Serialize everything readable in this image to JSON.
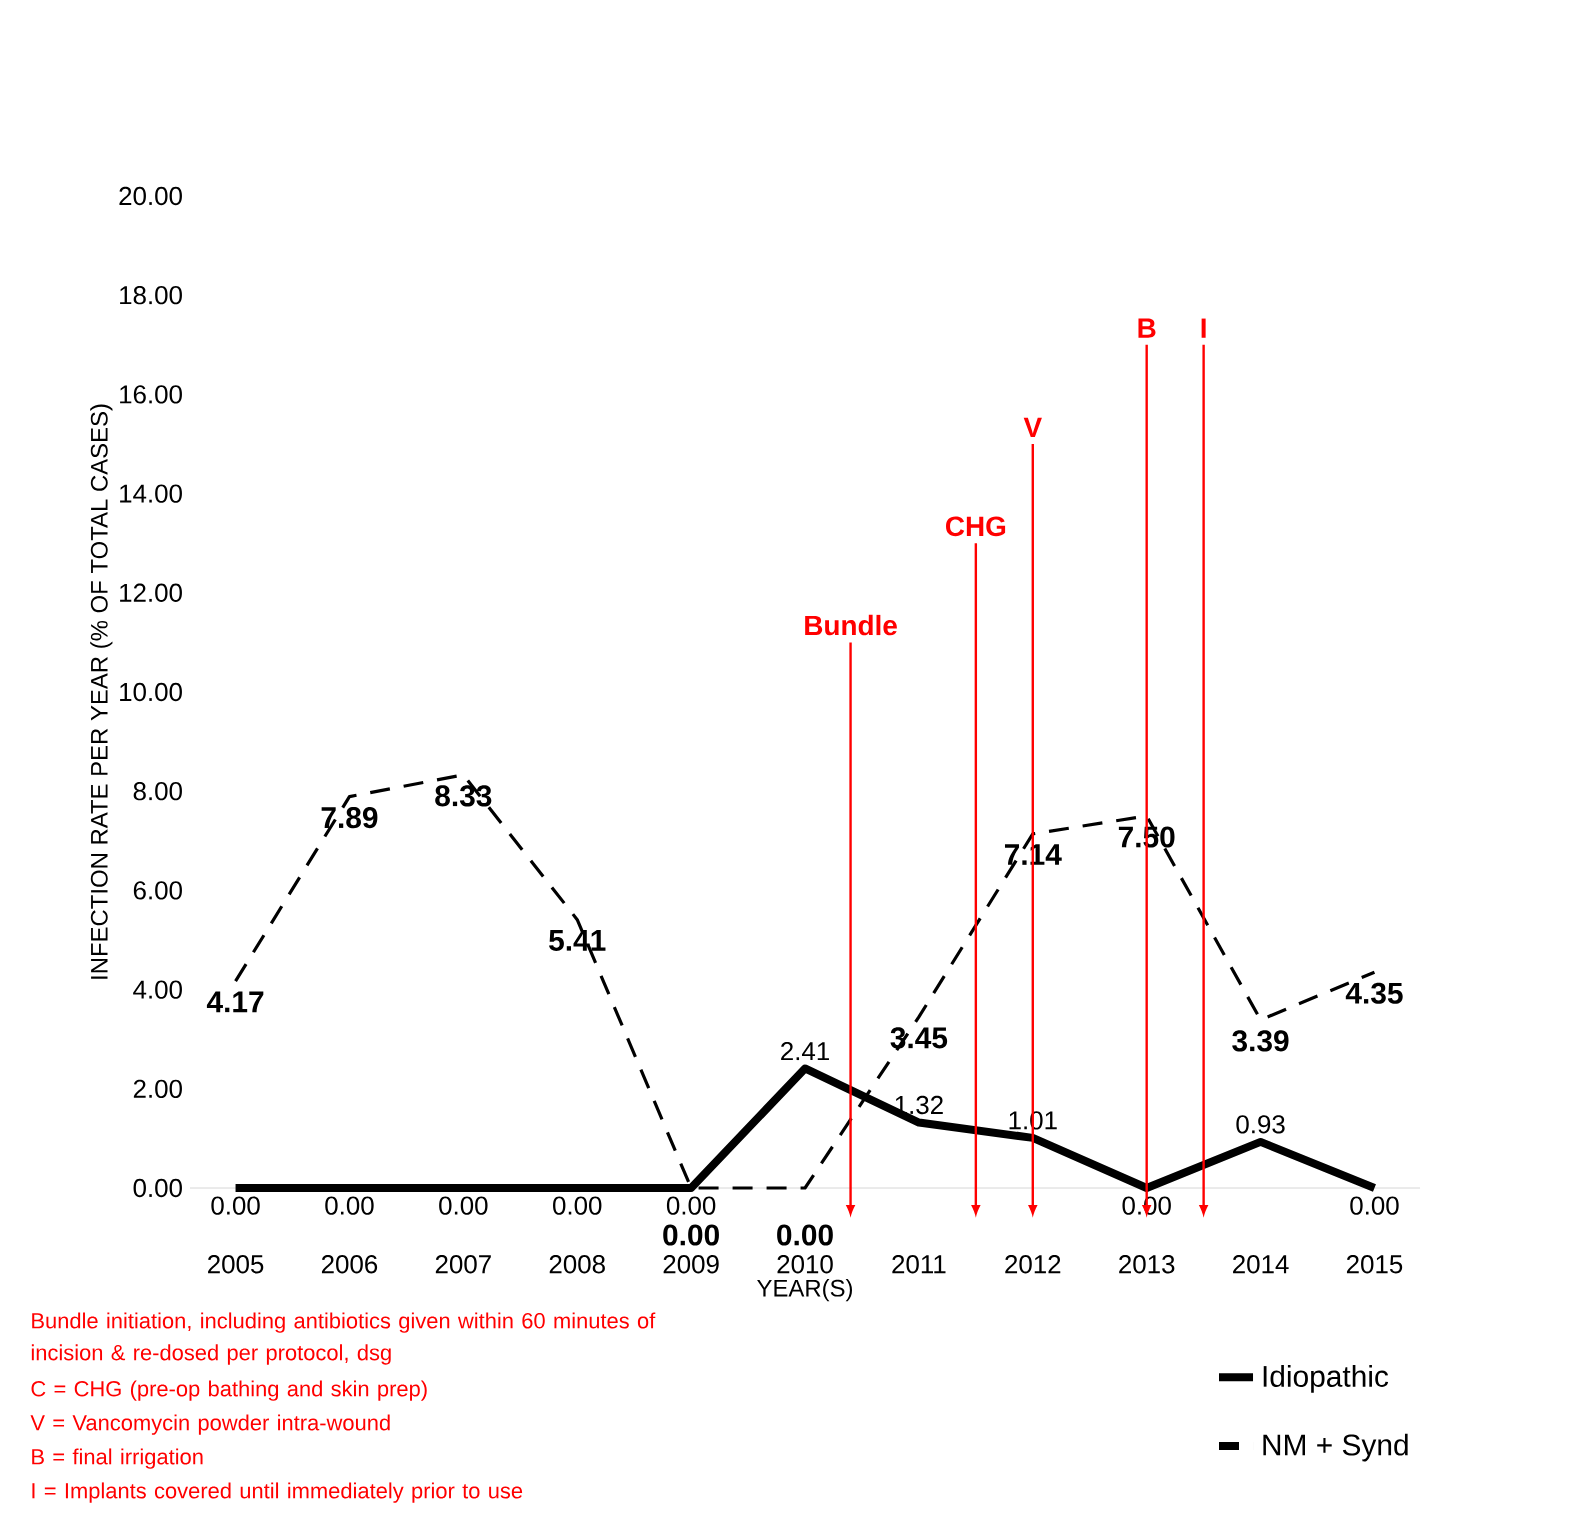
{
  "chart_data": {
    "type": "line",
    "xlabel": "YEAR(S)",
    "ylabel": "INFECTION RATE PER YEAR (% OF TOTAL CASES)",
    "x": [
      2005,
      2006,
      2007,
      2008,
      2009,
      2010,
      2011,
      2012,
      2013,
      2014,
      2015
    ],
    "xlim": [
      2004.6,
      2015.4
    ],
    "xticks": [
      2005,
      2006,
      2007,
      2008,
      2009,
      2010,
      2011,
      2012,
      2013,
      2014,
      2015
    ],
    "ylim": [
      0,
      20
    ],
    "yticks": [
      {
        "value": 0,
        "label": "0.00"
      },
      {
        "value": 2,
        "label": "2.00"
      },
      {
        "value": 4,
        "label": "4.00"
      },
      {
        "value": 6,
        "label": "6.00"
      },
      {
        "value": 8,
        "label": "8.00"
      },
      {
        "value": 10,
        "label": "10.00"
      },
      {
        "value": 12,
        "label": "12.00"
      },
      {
        "value": 14,
        "label": "14.00"
      },
      {
        "value": 16,
        "label": "16.00"
      },
      {
        "value": 18,
        "label": "18.00"
      },
      {
        "value": 20,
        "label": "20.00"
      }
    ],
    "series": [
      {
        "name": "Idiopathic",
        "color": "#000000",
        "line_style": "solid",
        "values": [
          0,
          0,
          0,
          0,
          0,
          2.41,
          1.32,
          1.01,
          0,
          0.93,
          0
        ],
        "value_labels": [
          "0.00",
          "0.00",
          "0.00",
          "0.00",
          "0.00",
          "2.41",
          "1.32",
          "1.01",
          "0.00",
          "0.93",
          "0.00"
        ]
      },
      {
        "name": "NM + Synd",
        "color": "#000000",
        "line_style": "dashed",
        "values": [
          4.17,
          7.89,
          8.33,
          5.41,
          0,
          0,
          3.45,
          7.14,
          7.5,
          3.39,
          4.35
        ],
        "value_labels": [
          "4.17",
          "7.89",
          "8.33",
          "5.41",
          "0.00",
          "0.00",
          "3.45",
          "7.14",
          "7.50",
          "3.39",
          "4.35"
        ]
      }
    ],
    "ref_lines": [
      {
        "axis": "x",
        "value": 2010.4,
        "label": "Bundle",
        "color": "#ff0000"
      },
      {
        "axis": "x",
        "value": 2011.5,
        "label": "CHG",
        "color": "#ff0000"
      },
      {
        "axis": "x",
        "value": 2012.0,
        "label": "V",
        "color": "#ff0000"
      },
      {
        "axis": "x",
        "value": 2013.0,
        "label": "B",
        "color": "#ff0000"
      },
      {
        "axis": "x",
        "value": 2013.5,
        "label": "I",
        "color": "#ff0000"
      }
    ],
    "annotations": [
      "Bundle initiation, including antibiotics given within 60 minutes of incision & re-dosed per protocol, dsg",
      "C = CHG (pre-op bathing and skin prep)",
      "V = Vancomycin powder intra-wound",
      "B = final irrigation",
      "I = Implants covered until immediately prior to use"
    ],
    "grid": false,
    "legend": "bottom right"
  }
}
